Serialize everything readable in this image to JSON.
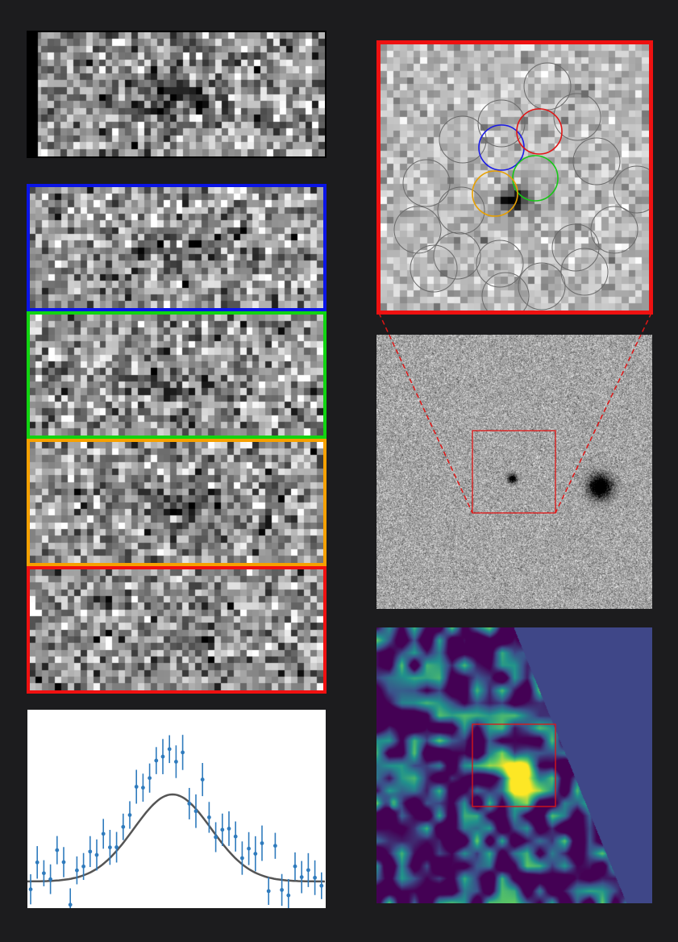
{
  "figure": {
    "spectrum_panels": [
      {
        "id": "combined",
        "frame_color": "#000000"
      },
      {
        "id": "aperture-blue",
        "frame_color": "#0a14e6"
      },
      {
        "id": "aperture-green",
        "frame_color": "#11d411"
      },
      {
        "id": "aperture-orange",
        "frame_color": "#f7a000"
      },
      {
        "id": "aperture-red",
        "frame_color": "#f01010"
      }
    ],
    "cutout": {
      "frame_color": "#ee1111",
      "ring_apertures": 18,
      "highlighted_apertures": [
        "blue",
        "red",
        "green",
        "orange"
      ],
      "highlight_colors": {
        "blue": "#1a1ae6",
        "red": "#e01515",
        "green": "#16c816",
        "orange": "#e8a000"
      }
    },
    "field": {
      "zoom_box_color": "#e01515",
      "connector_style": "dashed",
      "sources": 2
    },
    "map": {
      "colormap": "viridis",
      "zoom_box_color": "#e01515"
    },
    "profile": {
      "marker_color": "#2f7bbd",
      "model_color": "#555555"
    }
  }
}
